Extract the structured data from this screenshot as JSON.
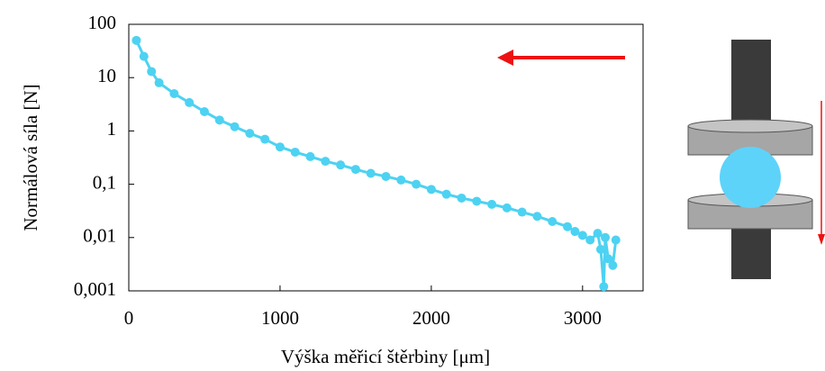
{
  "chart_data": {
    "type": "line",
    "x_label": "Výška měřicí štěrbiny [μm]",
    "y_label": "Normálová síla [N]",
    "log_y": true,
    "grid": false,
    "xlim": [
      0,
      3400
    ],
    "xticks": [
      0,
      1000,
      2000,
      3000
    ],
    "ylim": [
      0.001,
      100
    ],
    "yticks": [
      {
        "value": 0.001,
        "label": "0,001"
      },
      {
        "value": 0.01,
        "label": "0,01"
      },
      {
        "value": 0.1,
        "label": "0,1"
      },
      1,
      10,
      100
    ],
    "series": [
      {
        "color": "#4dd2f2",
        "x": [
          50,
          100,
          150,
          200,
          300,
          400,
          500,
          600,
          700,
          800,
          900,
          1000,
          1100,
          1200,
          1300,
          1400,
          1500,
          1600,
          1700,
          1800,
          1900,
          2000,
          2100,
          2200,
          2300,
          2400,
          2500,
          2600,
          2700,
          2800,
          2900,
          2950,
          3000,
          3050,
          3100,
          3120,
          3140,
          3150,
          3170,
          3200,
          3220
        ],
        "values": [
          50,
          25,
          13,
          8,
          5,
          3.4,
          2.3,
          1.6,
          1.2,
          0.9,
          0.7,
          0.5,
          0.4,
          0.33,
          0.27,
          0.23,
          0.19,
          0.16,
          0.14,
          0.12,
          0.1,
          0.08,
          0.065,
          0.055,
          0.048,
          0.042,
          0.036,
          0.03,
          0.025,
          0.02,
          0.016,
          0.013,
          0.011,
          0.009,
          0.012,
          0.006,
          0.0012,
          0.01,
          0.004,
          0.003,
          0.009
        ]
      }
    ]
  }
}
